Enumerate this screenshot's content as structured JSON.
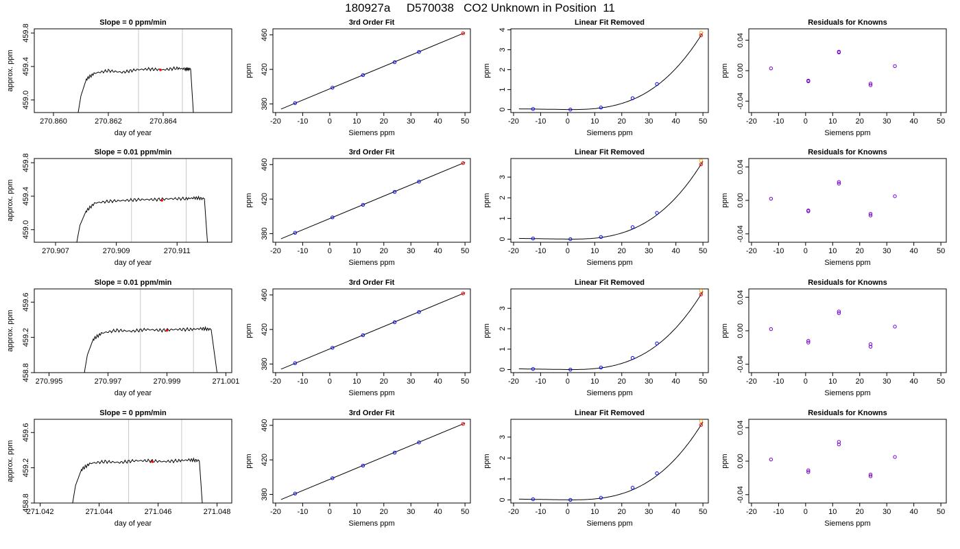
{
  "page_title": "180927a     D570038   CO2 Unknown in Position  11",
  "colors": {
    "line": "#000000",
    "grid_vline": "#c8c8c8",
    "known": "#0000ff",
    "unknown": "#ff0000",
    "unknown_alt": "#ffa500",
    "residual_point": "#7700cc"
  },
  "chart_data": [
    {
      "type": "line",
      "panel": "timeseries",
      "row": 0,
      "title": "Slope =  0  ppm/min",
      "xlabel": "day of year",
      "ylabel": "approx. ppm",
      "xlim": [
        270.8593,
        270.8665
      ],
      "ylim": [
        458.85,
        459.85
      ],
      "xticks": [
        270.86,
        270.862,
        270.864
      ],
      "xtick_labels": [
        "270.860",
        "270.862",
        "270.864"
      ],
      "yticks": [
        459.0,
        459.4,
        459.8
      ],
      "ytick_labels": [
        "459.0",
        "459.4",
        "459.8"
      ],
      "vlines": [
        270.8631,
        270.8647
      ],
      "trace": [
        [
          270.8609,
          458.85
        ],
        [
          270.861,
          459.05
        ],
        [
          270.8612,
          459.25
        ],
        [
          270.8615,
          459.32
        ],
        [
          270.862,
          459.35
        ],
        [
          270.8625,
          459.33
        ],
        [
          270.863,
          459.36
        ],
        [
          270.8635,
          459.37
        ],
        [
          270.864,
          459.36
        ],
        [
          270.8645,
          459.38
        ],
        [
          270.8648,
          459.37
        ],
        [
          270.865,
          459.37
        ],
        [
          270.8651,
          458.85
        ]
      ],
      "marker": {
        "x": 270.8639,
        "y": 459.36,
        "color": "red"
      }
    },
    {
      "type": "scatter",
      "panel": "fit",
      "row": 0,
      "title": "3rd Order Fit",
      "xlabel": "Siemens ppm",
      "ylabel": "ppm",
      "xlim": [
        -21,
        52
      ],
      "ylim": [
        370,
        467
      ],
      "xticks": [
        -20,
        -10,
        0,
        10,
        20,
        30,
        40,
        50
      ],
      "yticks": [
        380,
        420,
        460
      ],
      "knowns": [
        [
          -12.8,
          381.0
        ],
        [
          1.0,
          398.8
        ],
        [
          12.3,
          413.4
        ],
        [
          24.0,
          428.4
        ],
        [
          33.0,
          440.2
        ]
      ],
      "unknown": [
        49.3,
        461.8
      ],
      "fit_line": [
        [
          -18,
          374.0
        ],
        [
          50,
          462.6
        ]
      ]
    },
    {
      "type": "scatter",
      "panel": "linear_removed",
      "row": 0,
      "title": "Linear Fit Removed",
      "xlabel": "Siemens ppm",
      "ylabel": "ppm",
      "xlim": [
        -21,
        52
      ],
      "ylim": [
        -0.15,
        4.05
      ],
      "xticks": [
        -20,
        -10,
        0,
        10,
        20,
        30,
        40,
        50
      ],
      "yticks": [
        0,
        1,
        2,
        3,
        4
      ],
      "knowns": [
        [
          -12.8,
          0.03
        ],
        [
          1.0,
          0.0
        ],
        [
          12.3,
          0.1
        ],
        [
          24.0,
          0.57
        ],
        [
          33.0,
          1.28
        ]
      ],
      "unknown": [
        49.3,
        3.72
      ],
      "unknown_alt": [
        49.3,
        3.86
      ],
      "curve": {
        "from": -18,
        "to": 50,
        "a": 0.0012,
        "b": 0.0011,
        "c": -0.0125,
        "d": 0.0
      }
    },
    {
      "type": "scatter",
      "panel": "residuals",
      "row": 0,
      "title": "Residuals for Knowns",
      "xlabel": "Siemens ppm",
      "ylabel": "ppm",
      "xlim": [
        -21,
        52
      ],
      "ylim": [
        -0.055,
        0.055
      ],
      "xticks": [
        -20,
        -10,
        0,
        10,
        20,
        30,
        40,
        50
      ],
      "yticks": [
        -0.04,
        0.0,
        0.04
      ],
      "ytick_labels": [
        "-0.04",
        "0.00",
        "0.04"
      ],
      "points": [
        [
          -12.8,
          0.003
        ],
        [
          1.0,
          -0.013
        ],
        [
          1.0,
          -0.014
        ],
        [
          12.3,
          0.024
        ],
        [
          12.3,
          0.025
        ],
        [
          24.0,
          -0.017
        ],
        [
          24.0,
          -0.019
        ],
        [
          33.0,
          0.006
        ]
      ]
    },
    {
      "type": "line",
      "panel": "timeseries",
      "row": 1,
      "title": "Slope =  0.01  ppm/min",
      "xlabel": "day of year",
      "ylabel": "approx. ppm",
      "xlim": [
        270.9063,
        270.9128
      ],
      "ylim": [
        458.85,
        459.85
      ],
      "xticks": [
        270.907,
        270.909,
        270.911
      ],
      "xtick_labels": [
        "270.907",
        "270.909",
        "270.911"
      ],
      "yticks": [
        459.0,
        459.4,
        459.8
      ],
      "ytick_labels": [
        "459.0",
        "459.4",
        "459.8"
      ],
      "vlines": [
        270.9095,
        270.9113
      ],
      "trace": [
        [
          270.9077,
          458.85
        ],
        [
          270.9078,
          459.05
        ],
        [
          270.908,
          459.22
        ],
        [
          270.9083,
          459.32
        ],
        [
          270.9088,
          459.34
        ],
        [
          270.9093,
          459.35
        ],
        [
          270.9098,
          459.36
        ],
        [
          270.9103,
          459.36
        ],
        [
          270.9108,
          459.37
        ],
        [
          270.9113,
          459.37
        ],
        [
          270.9116,
          459.38
        ],
        [
          270.9119,
          459.37
        ],
        [
          270.912,
          458.85
        ]
      ],
      "marker": {
        "x": 270.9105,
        "y": 459.35,
        "color": "red"
      }
    },
    {
      "type": "scatter",
      "panel": "fit",
      "row": 1,
      "title": "3rd Order Fit",
      "xlabel": "Siemens ppm",
      "ylabel": "ppm",
      "xlim": [
        -21,
        52
      ],
      "ylim": [
        370,
        467
      ],
      "xticks": [
        -20,
        -10,
        0,
        10,
        20,
        30,
        40,
        50
      ],
      "yticks": [
        380,
        420,
        460
      ],
      "knowns": [
        [
          -12.8,
          381.0
        ],
        [
          1.0,
          398.8
        ],
        [
          12.3,
          413.4
        ],
        [
          24.0,
          428.4
        ],
        [
          33.0,
          440.2
        ]
      ],
      "unknown": [
        49.3,
        461.7
      ],
      "fit_line": [
        [
          -18,
          374.0
        ],
        [
          50,
          462.6
        ]
      ]
    },
    {
      "type": "scatter",
      "panel": "linear_removed",
      "row": 1,
      "title": "Linear Fit Removed",
      "xlabel": "Siemens ppm",
      "ylabel": "ppm",
      "xlim": [
        -21,
        52
      ],
      "ylim": [
        -0.15,
        3.9
      ],
      "xticks": [
        -20,
        -10,
        0,
        10,
        20,
        30,
        40,
        50
      ],
      "yticks": [
        0,
        1,
        2,
        3
      ],
      "knowns": [
        [
          -12.8,
          0.03
        ],
        [
          1.0,
          0.0
        ],
        [
          12.3,
          0.1
        ],
        [
          24.0,
          0.58
        ],
        [
          33.0,
          1.27
        ]
      ],
      "unknown": [
        49.3,
        3.62
      ],
      "unknown_alt": [
        49.3,
        3.8
      ],
      "curve": {
        "from": -18,
        "to": 50,
        "a": 0.0012,
        "b": 0.0011,
        "c": -0.0125,
        "d": 0.0
      }
    },
    {
      "type": "scatter",
      "panel": "residuals",
      "row": 1,
      "title": "Residuals for Knowns",
      "xlabel": "Siemens ppm",
      "ylabel": "ppm",
      "xlim": [
        -21,
        52
      ],
      "ylim": [
        -0.05,
        0.05
      ],
      "xticks": [
        -20,
        -10,
        0,
        10,
        20,
        30,
        40,
        50
      ],
      "yticks": [
        -0.04,
        0.0,
        0.04
      ],
      "ytick_labels": [
        "-0.04",
        "0.00",
        "0.04"
      ],
      "points": [
        [
          -12.8,
          0.002
        ],
        [
          1.0,
          -0.012
        ],
        [
          1.0,
          -0.013
        ],
        [
          12.3,
          0.02
        ],
        [
          12.3,
          0.022
        ],
        [
          24.0,
          -0.016
        ],
        [
          24.0,
          -0.018
        ],
        [
          33.0,
          0.005
        ]
      ]
    },
    {
      "type": "line",
      "panel": "timeseries",
      "row": 2,
      "title": "Slope =  0.01  ppm/min",
      "xlabel": "day of year",
      "ylabel": "approx. ppm",
      "xlim": [
        270.9945,
        271.0012
      ],
      "ylim": [
        458.8,
        459.75
      ],
      "xticks": [
        270.995,
        270.997,
        270.999,
        271.001
      ],
      "xtick_labels": [
        "270.995",
        "270.997",
        "270.999",
        "271.001"
      ],
      "yticks": [
        458.8,
        459.2,
        459.6
      ],
      "ytick_labels": [
        "458.8",
        "459.2",
        "459.6"
      ],
      "vlines": [
        270.9981,
        270.9999
      ],
      "trace": [
        [
          270.9962,
          458.8
        ],
        [
          270.9963,
          459.0
        ],
        [
          270.9965,
          459.18
        ],
        [
          270.9968,
          459.25
        ],
        [
          270.9973,
          459.28
        ],
        [
          270.9978,
          459.27
        ],
        [
          270.9983,
          459.29
        ],
        [
          270.9988,
          459.28
        ],
        [
          270.9993,
          459.29
        ],
        [
          270.9998,
          459.29
        ],
        [
          271.0002,
          459.3
        ],
        [
          271.0005,
          459.29
        ],
        [
          271.0007,
          458.8
        ]
      ],
      "marker": {
        "x": 270.999,
        "y": 459.28,
        "color": "red"
      }
    },
    {
      "type": "scatter",
      "panel": "fit",
      "row": 2,
      "title": "3rd Order Fit",
      "xlabel": "Siemens ppm",
      "ylabel": "ppm",
      "xlim": [
        -21,
        52
      ],
      "ylim": [
        370,
        467
      ],
      "xticks": [
        -20,
        -10,
        0,
        10,
        20,
        30,
        40,
        50
      ],
      "yticks": [
        380,
        420,
        460
      ],
      "knowns": [
        [
          -12.8,
          381.0
        ],
        [
          1.0,
          398.8
        ],
        [
          12.3,
          413.4
        ],
        [
          24.0,
          428.4
        ],
        [
          33.0,
          440.2
        ]
      ],
      "unknown": [
        49.3,
        461.7
      ],
      "fit_line": [
        [
          -18,
          374.0
        ],
        [
          50,
          462.6
        ]
      ]
    },
    {
      "type": "scatter",
      "panel": "linear_removed",
      "row": 2,
      "title": "Linear Fit Removed",
      "xlabel": "Siemens ppm",
      "ylabel": "ppm",
      "xlim": [
        -21,
        52
      ],
      "ylim": [
        -0.15,
        3.95
      ],
      "xticks": [
        -20,
        -10,
        0,
        10,
        20,
        30,
        40,
        50
      ],
      "yticks": [
        0,
        1,
        2,
        3
      ],
      "knowns": [
        [
          -12.8,
          0.03
        ],
        [
          1.0,
          0.0
        ],
        [
          12.3,
          0.1
        ],
        [
          24.0,
          0.57
        ],
        [
          33.0,
          1.28
        ]
      ],
      "unknown": [
        49.3,
        3.68
      ],
      "unknown_alt": [
        49.3,
        3.86
      ],
      "curve": {
        "from": -18,
        "to": 50,
        "a": 0.0012,
        "b": 0.0011,
        "c": -0.0125,
        "d": 0.0
      }
    },
    {
      "type": "scatter",
      "panel": "residuals",
      "row": 2,
      "title": "Residuals for Knowns",
      "xlabel": "Siemens ppm",
      "ylabel": "ppm",
      "xlim": [
        -21,
        52
      ],
      "ylim": [
        -0.05,
        0.05
      ],
      "xticks": [
        -20,
        -10,
        0,
        10,
        20,
        30,
        40,
        50
      ],
      "yticks": [
        -0.04,
        0.0,
        0.04
      ],
      "ytick_labels": [
        "-0.04",
        "0.00",
        "0.04"
      ],
      "points": [
        [
          -12.8,
          0.002
        ],
        [
          1.0,
          -0.012
        ],
        [
          1.0,
          -0.014
        ],
        [
          12.3,
          0.021
        ],
        [
          12.3,
          0.023
        ],
        [
          24.0,
          -0.016
        ],
        [
          24.0,
          -0.019
        ],
        [
          33.0,
          0.005
        ]
      ]
    },
    {
      "type": "line",
      "panel": "timeseries",
      "row": 3,
      "title": "Slope =  0  ppm/min",
      "xlabel": "day of year",
      "ylabel": "approx. ppm",
      "xlim": [
        271.0418,
        271.0485
      ],
      "ylim": [
        458.8,
        459.75
      ],
      "xticks": [
        271.042,
        271.044,
        271.046,
        271.048
      ],
      "xtick_labels": [
        "271.042",
        "271.044",
        "271.046",
        "271.048"
      ],
      "yticks": [
        458.8,
        459.2,
        459.6
      ],
      "ytick_labels": [
        "458.8",
        "459.2",
        "459.6"
      ],
      "vlines": [
        271.045,
        271.0468
      ],
      "trace": [
        [
          271.0431,
          458.8
        ],
        [
          271.0432,
          459.0
        ],
        [
          271.0434,
          459.18
        ],
        [
          271.0437,
          459.25
        ],
        [
          271.0442,
          459.27
        ],
        [
          271.0447,
          459.26
        ],
        [
          271.0452,
          459.28
        ],
        [
          271.0457,
          459.28
        ],
        [
          271.0462,
          459.27
        ],
        [
          271.0467,
          459.28
        ],
        [
          271.0471,
          459.29
        ],
        [
          271.0474,
          459.28
        ],
        [
          271.0475,
          458.8
        ]
      ],
      "marker": {
        "x": 271.0458,
        "y": 459.27,
        "color": "red"
      }
    },
    {
      "type": "scatter",
      "panel": "fit",
      "row": 3,
      "title": "3rd Order Fit",
      "xlabel": "Siemens ppm",
      "ylabel": "ppm",
      "xlim": [
        -21,
        52
      ],
      "ylim": [
        370,
        467
      ],
      "xticks": [
        -20,
        -10,
        0,
        10,
        20,
        30,
        40,
        50
      ],
      "yticks": [
        380,
        420,
        460
      ],
      "knowns": [
        [
          -12.8,
          381.0
        ],
        [
          1.0,
          398.8
        ],
        [
          12.3,
          413.4
        ],
        [
          24.0,
          428.4
        ],
        [
          33.0,
          440.2
        ]
      ],
      "unknown": [
        49.3,
        461.7
      ],
      "fit_line": [
        [
          -18,
          374.0
        ],
        [
          50,
          462.6
        ]
      ]
    },
    {
      "type": "scatter",
      "panel": "linear_removed",
      "row": 3,
      "title": "Linear Fit Removed",
      "xlabel": "Siemens ppm",
      "ylabel": "ppm",
      "xlim": [
        -21,
        52
      ],
      "ylim": [
        -0.15,
        3.85
      ],
      "xticks": [
        -20,
        -10,
        0,
        10,
        20,
        30,
        40,
        50
      ],
      "yticks": [
        0,
        1,
        2,
        3
      ],
      "knowns": [
        [
          -12.8,
          0.03
        ],
        [
          1.0,
          0.0
        ],
        [
          12.3,
          0.1
        ],
        [
          24.0,
          0.58
        ],
        [
          33.0,
          1.27
        ]
      ],
      "unknown": [
        49.3,
        3.58
      ],
      "unknown_alt": [
        49.3,
        3.76
      ],
      "curve": {
        "from": -18,
        "to": 50,
        "a": 0.0012,
        "b": 0.0011,
        "c": -0.0125,
        "d": 0.0
      }
    },
    {
      "type": "scatter",
      "panel": "residuals",
      "row": 3,
      "title": "Residuals for Knowns",
      "xlabel": "Siemens ppm",
      "ylabel": "ppm",
      "xlim": [
        -21,
        52
      ],
      "ylim": [
        -0.05,
        0.05
      ],
      "xticks": [
        -20,
        -10,
        0,
        10,
        20,
        30,
        40,
        50
      ],
      "yticks": [
        -0.04,
        0.0,
        0.04
      ],
      "ytick_labels": [
        "-0.04",
        "0.00",
        "0.04"
      ],
      "points": [
        [
          -12.8,
          0.002
        ],
        [
          1.0,
          -0.011
        ],
        [
          1.0,
          -0.013
        ],
        [
          12.3,
          0.02
        ],
        [
          12.3,
          0.023
        ],
        [
          24.0,
          -0.016
        ],
        [
          24.0,
          -0.018
        ],
        [
          33.0,
          0.005
        ]
      ]
    }
  ]
}
